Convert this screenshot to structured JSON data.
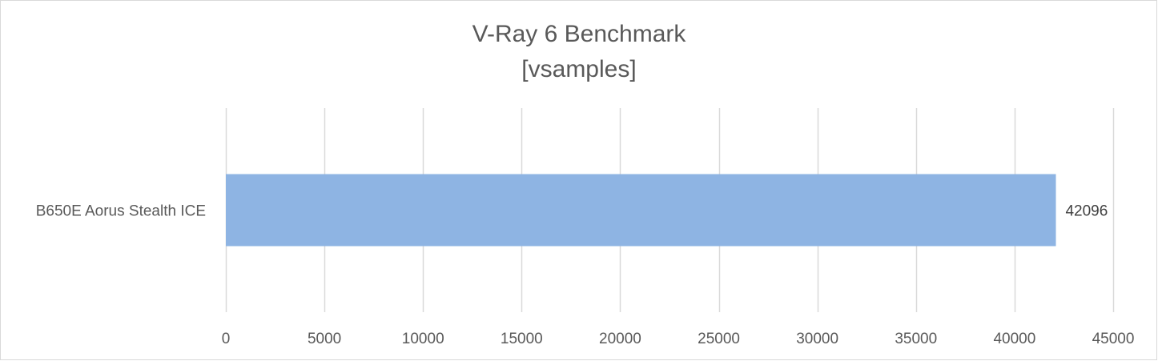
{
  "chart_data": {
    "type": "bar",
    "orientation": "horizontal",
    "title": "V-Ray 6 Benchmark",
    "subtitle": "[vsamples]",
    "categories": [
      "B650E Aorus Stealth ICE"
    ],
    "values": [
      42096
    ],
    "data_labels": [
      "42096"
    ],
    "xlim": [
      0,
      45000
    ],
    "xticks": [
      0,
      5000,
      10000,
      15000,
      20000,
      25000,
      30000,
      35000,
      40000,
      45000
    ],
    "xtick_labels": [
      "0",
      "5000",
      "10000",
      "15000",
      "20000",
      "25000",
      "30000",
      "35000",
      "40000",
      "45000"
    ],
    "grid": true,
    "legend": "none",
    "bar_color": "#8eb4e3",
    "grid_color": "#d9d9d9"
  }
}
